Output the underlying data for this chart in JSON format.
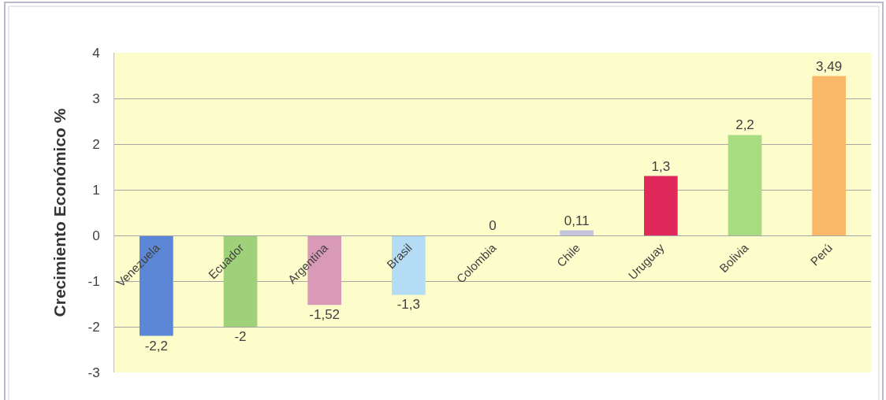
{
  "chart_data": {
    "type": "bar",
    "ylabel": "Crecimiento Económico %",
    "categories": [
      "Venezuela",
      "Ecuador",
      "Argentina",
      "Brasil",
      "Colombia",
      "Chile",
      "Uruguay",
      "Bolivia",
      "Perú"
    ],
    "values": [
      -2.2,
      -2,
      -1.52,
      -1.3,
      0,
      0.11,
      1.3,
      2.2,
      3.49
    ],
    "colors": [
      "#5b87d6",
      "#9fd17a",
      "#d99ab8",
      "#b5dcf5",
      "#c0c0c0",
      "#c4c4dc",
      "#e0285a",
      "#a8dc82",
      "#f8b868"
    ],
    "value_labels": [
      "-2,2",
      "-2",
      "-1,52",
      "-1,3",
      "0",
      "0,11",
      "1,3",
      "2,2",
      "3,49"
    ],
    "ylim": [
      -3,
      4
    ],
    "yticks": [
      -3,
      -2,
      -1,
      0,
      1,
      2,
      3,
      4
    ],
    "grid": "y"
  }
}
